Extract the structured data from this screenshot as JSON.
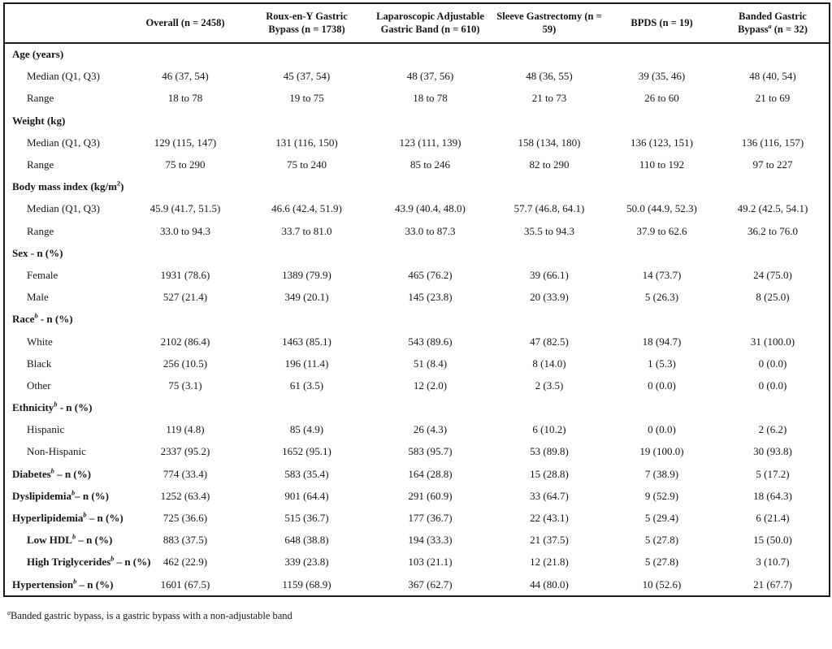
{
  "colors": {
    "text": "#161616",
    "border": "#1a1a1a",
    "background": "#ffffff"
  },
  "table": {
    "columns": [
      {
        "segments": [
          {
            "t": "Overall (n = 2458)"
          }
        ]
      },
      {
        "segments": [
          {
            "t": "Roux-en-Y Gastric Bypass (n = 1738)"
          }
        ]
      },
      {
        "segments": [
          {
            "t": "Laparoscopic Adjustable Gastric Band (n = 610)"
          }
        ]
      },
      {
        "segments": [
          {
            "t": "Sleeve Gastrectomy (n = 59)"
          }
        ]
      },
      {
        "segments": [
          {
            "t": "BPDS (n = 19)"
          }
        ]
      },
      {
        "segments": [
          {
            "t": "Banded Gastric Bypass"
          },
          {
            "t": "a",
            "sup": true,
            "i": true
          },
          {
            "t": " (n = 32)"
          }
        ]
      }
    ],
    "rows": [
      {
        "type": "section",
        "label": [
          {
            "t": "Age (years)"
          }
        ],
        "values": []
      },
      {
        "type": "sub",
        "label": [
          {
            "t": "Median (Q1, Q3)"
          }
        ],
        "values": [
          "46 (37, 54)",
          "45 (37, 54)",
          "48 (37, 56)",
          "48 (36, 55)",
          "39 (35, 46)",
          "48 (40, 54)"
        ]
      },
      {
        "type": "sub",
        "label": [
          {
            "t": "Range"
          }
        ],
        "values": [
          "18 to 78",
          "19 to 75",
          "18 to 78",
          "21 to 73",
          "26 to 60",
          "21 to 69"
        ]
      },
      {
        "type": "section",
        "label": [
          {
            "t": "Weight (kg)"
          }
        ],
        "values": []
      },
      {
        "type": "sub",
        "label": [
          {
            "t": "Median (Q1, Q3)"
          }
        ],
        "values": [
          "129 (115, 147)",
          "131 (116, 150)",
          "123 (111, 139)",
          "158 (134, 180)",
          "136 (123, 151)",
          "136 (116, 157)"
        ]
      },
      {
        "type": "sub",
        "label": [
          {
            "t": "Range"
          }
        ],
        "values": [
          "75 to 290",
          "75 to 240",
          "85 to 246",
          "82 to 290",
          "110 to 192",
          "97 to 227"
        ]
      },
      {
        "type": "section",
        "label": [
          {
            "t": "Body mass index (kg/m"
          },
          {
            "t": "2",
            "sup": true
          },
          {
            "t": ")"
          }
        ],
        "values": []
      },
      {
        "type": "sub",
        "label": [
          {
            "t": "Median (Q1, Q3)"
          }
        ],
        "values": [
          "45.9 (41.7, 51.5)",
          "46.6 (42.4, 51.9)",
          "43.9 (40.4, 48.0)",
          "57.7 (46.8, 64.1)",
          "50.0 (44.9, 52.3)",
          "49.2 (42.5, 54.1)"
        ]
      },
      {
        "type": "sub",
        "label": [
          {
            "t": "Range"
          }
        ],
        "values": [
          "33.0 to 94.3",
          "33.7 to 81.0",
          "33.0 to 87.3",
          "35.5 to 94.3",
          "37.9 to 62.6",
          "36.2 to 76.0"
        ]
      },
      {
        "type": "section",
        "label": [
          {
            "t": "Sex - n (%)"
          }
        ],
        "values": []
      },
      {
        "type": "sub",
        "label": [
          {
            "t": "Female"
          }
        ],
        "values": [
          "1931 (78.6)",
          "1389 (79.9)",
          "465 (76.2)",
          "39 (66.1)",
          "14 (73.7)",
          "24 (75.0)"
        ]
      },
      {
        "type": "sub",
        "label": [
          {
            "t": "Male"
          }
        ],
        "values": [
          "527 (21.4)",
          "349 (20.1)",
          "145 (23.8)",
          "20 (33.9)",
          "5 (26.3)",
          "8 (25.0)"
        ]
      },
      {
        "type": "section",
        "label": [
          {
            "t": "Race"
          },
          {
            "t": "b",
            "sup": true,
            "i": true
          },
          {
            "t": " - n (%)"
          }
        ],
        "values": []
      },
      {
        "type": "sub",
        "label": [
          {
            "t": "White"
          }
        ],
        "values": [
          "2102 (86.4)",
          "1463 (85.1)",
          "543 (89.6)",
          "47 (82.5)",
          "18 (94.7)",
          "31 (100.0)"
        ]
      },
      {
        "type": "sub",
        "label": [
          {
            "t": "Black"
          }
        ],
        "values": [
          "256 (10.5)",
          "196 (11.4)",
          "51 (8.4)",
          "8 (14.0)",
          "1 (5.3)",
          "0 (0.0)"
        ]
      },
      {
        "type": "sub",
        "label": [
          {
            "t": "Other"
          }
        ],
        "values": [
          "75 (3.1)",
          "61 (3.5)",
          "12 (2.0)",
          "2 (3.5)",
          "0 (0.0)",
          "0 (0.0)"
        ]
      },
      {
        "type": "section",
        "label": [
          {
            "t": "Ethnicity"
          },
          {
            "t": "b",
            "sup": true,
            "i": true
          },
          {
            "t": " - n (%)"
          }
        ],
        "values": []
      },
      {
        "type": "sub",
        "label": [
          {
            "t": "Hispanic"
          }
        ],
        "values": [
          "119 (4.8)",
          "85 (4.9)",
          "26 (4.3)",
          "6 (10.2)",
          "0 (0.0)",
          "2 (6.2)"
        ]
      },
      {
        "type": "sub",
        "label": [
          {
            "t": "Non-Hispanic"
          }
        ],
        "values": [
          "2337 (95.2)",
          "1652 (95.1)",
          "583 (95.7)",
          "53 (89.8)",
          "19 (100.0)",
          "30 (93.8)"
        ]
      },
      {
        "type": "flat",
        "label": [
          {
            "t": "Diabetes"
          },
          {
            "t": "b",
            "sup": true,
            "i": true
          },
          {
            "t": " – n (%)"
          }
        ],
        "values": [
          "774 (33.4)",
          "583 (35.4)",
          "164 (28.8)",
          "15 (28.8)",
          "7 (38.9)",
          "5 (17.2)"
        ]
      },
      {
        "type": "flat",
        "label": [
          {
            "t": "Dyslipidemia"
          },
          {
            "t": "b",
            "sup": true,
            "i": true
          },
          {
            "t": "– n (%)"
          }
        ],
        "values": [
          "1252 (63.4)",
          "901 (64.4)",
          "291 (60.9)",
          "33 (64.7)",
          "9 (52.9)",
          "18 (64.3)"
        ]
      },
      {
        "type": "flat",
        "label": [
          {
            "t": "Hyperlipidemia"
          },
          {
            "t": "b",
            "sup": true,
            "i": true
          },
          {
            "t": " – n (%)"
          }
        ],
        "values": [
          "725 (36.6)",
          "515 (36.7)",
          "177 (36.7)",
          "22 (43.1)",
          "5 (29.4)",
          "6 (21.4)"
        ]
      },
      {
        "type": "flat-indent",
        "label": [
          {
            "t": "Low HDL"
          },
          {
            "t": "b",
            "sup": true,
            "i": true
          },
          {
            "t": " – n (%)"
          }
        ],
        "values": [
          "883 (37.5)",
          "648 (38.8)",
          "194 (33.3)",
          "21 (37.5)",
          "5 (27.8)",
          "15 (50.0)"
        ]
      },
      {
        "type": "flat-indent",
        "label": [
          {
            "t": "High Triglycerides"
          },
          {
            "t": "b",
            "sup": true,
            "i": true
          },
          {
            "t": " – n (%)"
          }
        ],
        "values": [
          "462 (22.9)",
          "339 (23.8)",
          "103 (21.1)",
          "12 (21.8)",
          "5 (27.8)",
          "3 (10.7)"
        ]
      },
      {
        "type": "flat",
        "label": [
          {
            "t": "Hypertension"
          },
          {
            "t": "b",
            "sup": true,
            "i": true
          },
          {
            "t": " – n (%)"
          }
        ],
        "values": [
          "1601 (67.5)",
          "1159 (68.9)",
          "367 (62.7)",
          "44 (80.0)",
          "10 (52.6)",
          "21 (67.7)"
        ]
      }
    ]
  },
  "footnotes": [
    {
      "segments": [
        {
          "t": "a",
          "sup": true,
          "i": true
        },
        {
          "t": "Banded gastric bypass, is a gastric bypass with a non-adjustable band"
        }
      ]
    }
  ]
}
